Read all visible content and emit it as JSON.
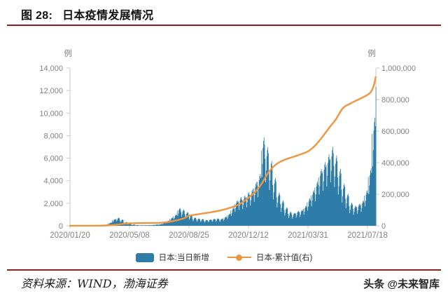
{
  "title": {
    "figure_label": "图 28:",
    "text": "日本疫情发展情况"
  },
  "footer": {
    "source": "资料来源：WIND，渤海证券",
    "watermark": "头条 @未来智库"
  },
  "colors": {
    "bar": "#2e7da8",
    "line": "#f0953f",
    "divider": "#8b2026",
    "axis_text": "#808080",
    "axis_line": "#c9c9c9",
    "baseline": "#dcdcdc"
  },
  "chart_data": {
    "type": "combo_bar_line",
    "title": "日本疫情发展情况",
    "grid": false,
    "legend_position": "bottom_center",
    "x_axis": {
      "tick_labels": [
        "2020/01/20",
        "2020/05/08",
        "2020/08/25",
        "2020/12/12",
        "2021/03/31",
        "2021/07/18"
      ],
      "start": "2020/01/20",
      "days_per_tick": 109,
      "end_day": 560
    },
    "left_axis": {
      "unit": "例",
      "min": 0,
      "max": 14000,
      "step": 2000,
      "tick_labels": [
        "14,000",
        "12,000",
        "10,000",
        "8,000",
        "6,000",
        "4,000",
        "2,000",
        "0"
      ]
    },
    "right_axis": {
      "unit": "例",
      "min": 0,
      "max": 1000000,
      "step": 200000,
      "tick_labels": [
        "1,000,000",
        "800,000",
        "600,000",
        "400,000",
        "200,000",
        "0"
      ]
    },
    "legend": [
      {
        "label": "日本:当日新增",
        "marker": "bar",
        "color": "#2e7da8"
      },
      {
        "label": "日本-累计值(右)",
        "marker": "line_dot",
        "color": "#f0953f"
      }
    ],
    "series": [
      {
        "name": "日本:当日新增",
        "type": "bar",
        "axis": "left",
        "color": "#2e7da8",
        "sampling": "weekly peak envelope from 2020/01/20, daily bars = weekly value × intraweek pattern",
        "weekly_peak_values": [
          4,
          8,
          12,
          10,
          18,
          28,
          40,
          55,
          65,
          120,
          280,
          580,
          720,
          560,
          330,
          190,
          110,
          65,
          50,
          55,
          60,
          75,
          110,
          140,
          240,
          460,
          720,
          1000,
          1580,
          1440,
          1220,
          960,
          740,
          660,
          610,
          520,
          570,
          620,
          660,
          630,
          800,
          1080,
          1600,
          2250,
          2540,
          2680,
          2980,
          3250,
          3880,
          4600,
          7850,
          7000,
          5750,
          4250,
          2950,
          2250,
          1650,
          1250,
          1150,
          1320,
          1420,
          1780,
          2450,
          3150,
          3950,
          5050,
          5650,
          6350,
          7000,
          6250,
          5050,
          3750,
          2850,
          2050,
          1780,
          1950,
          2250,
          3150,
          5100,
          9600,
          14500
        ],
        "intraweek_pattern": [
          0.85,
          0.55,
          0.7,
          0.88,
          0.96,
          1.0,
          0.92
        ]
      },
      {
        "name": "日本-累计值(右)",
        "type": "line",
        "axis": "right",
        "color": "#f0953f",
        "points_day_value": [
          [
            0,
            2
          ],
          [
            30,
            200
          ],
          [
            60,
            1100
          ],
          [
            80,
            4800
          ],
          [
            95,
            11000
          ],
          [
            109,
            15600
          ],
          [
            125,
            16700
          ],
          [
            145,
            17700
          ],
          [
            165,
            18800
          ],
          [
            180,
            23500
          ],
          [
            195,
            34000
          ],
          [
            210,
            49000
          ],
          [
            218,
            64000
          ],
          [
            235,
            73000
          ],
          [
            255,
            84000
          ],
          [
            275,
            97000
          ],
          [
            295,
            116000
          ],
          [
            312,
            140000
          ],
          [
            327,
            178000
          ],
          [
            340,
            217000
          ],
          [
            352,
            272000
          ],
          [
            364,
            340000
          ],
          [
            377,
            388000
          ],
          [
            392,
            417000
          ],
          [
            410,
            438000
          ],
          [
            425,
            456000
          ],
          [
            437,
            474000
          ],
          [
            450,
            512000
          ],
          [
            462,
            562000
          ],
          [
            475,
            622000
          ],
          [
            487,
            675000
          ],
          [
            500,
            746000
          ],
          [
            512,
            772000
          ],
          [
            524,
            793000
          ],
          [
            536,
            813000
          ],
          [
            545,
            830000
          ],
          [
            552,
            852000
          ],
          [
            557,
            895000
          ],
          [
            560,
            942000
          ]
        ]
      }
    ]
  }
}
